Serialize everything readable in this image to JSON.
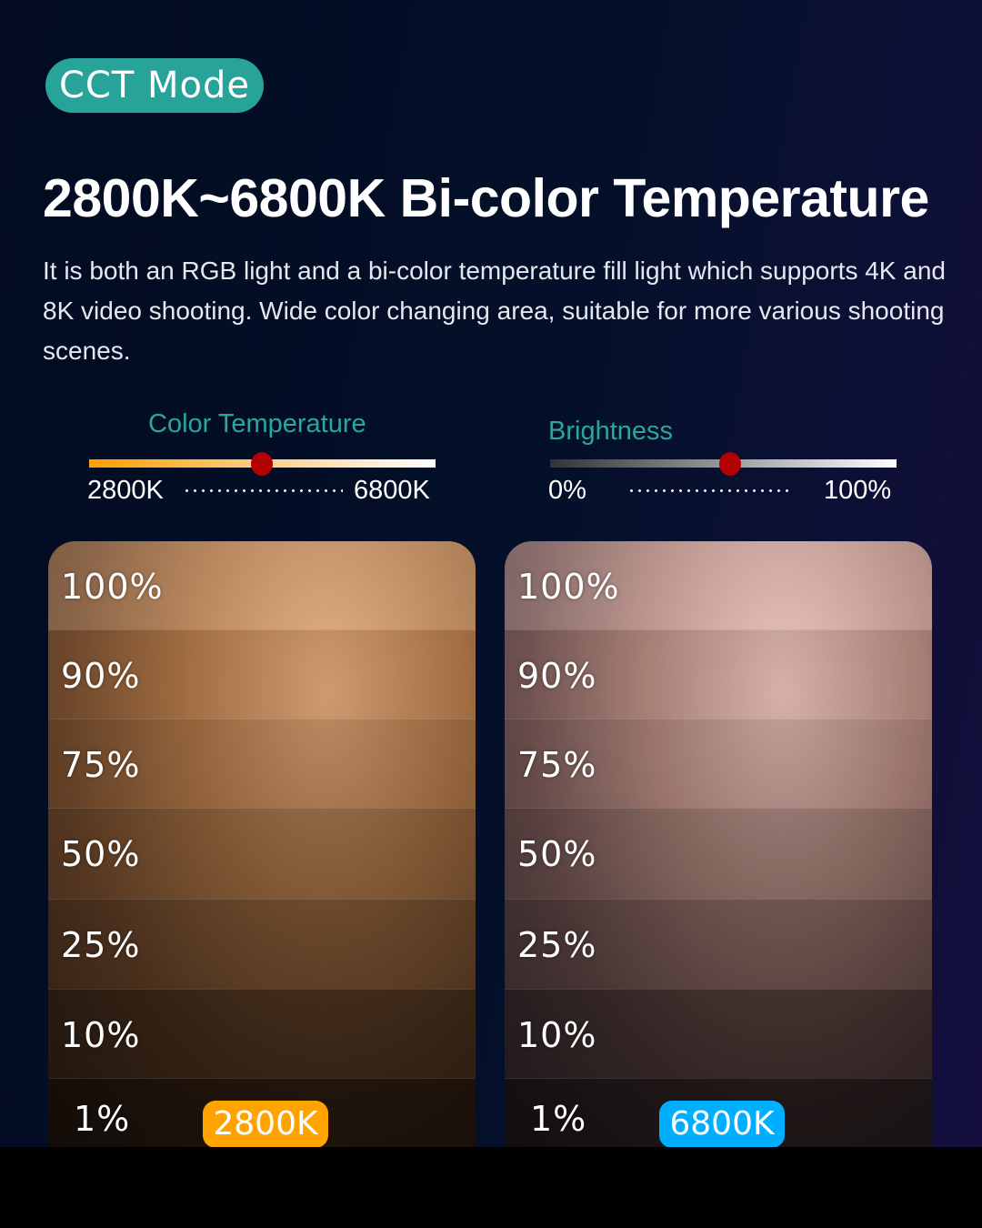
{
  "badge": "CCT Mode",
  "title": "2800K~6800K Bi-color Temperature",
  "description": "It is both an RGB light and a bi-color temperature fill light which supports 4K and 8K video shooting. Wide color changing area, suitable for more various shooting scenes.",
  "color_temperature": {
    "label": "Color Temperature",
    "min": "2800K",
    "max": "6800K",
    "value_fraction": 0.5,
    "color": "#ff9f00"
  },
  "brightness": {
    "label": "Brightness",
    "min": "0%",
    "max": "100%",
    "value_fraction": 0.52
  },
  "panels": [
    {
      "tag": "2800K",
      "tag_color": "#ffa300",
      "levels": [
        "100%",
        "90%",
        "75%",
        "50%",
        "25%",
        "10%",
        "1%"
      ]
    },
    {
      "tag": "6800K",
      "tag_color": "#00aeff",
      "levels": [
        "100%",
        "90%",
        "75%",
        "50%",
        "25%",
        "10%",
        "1%"
      ]
    }
  ]
}
